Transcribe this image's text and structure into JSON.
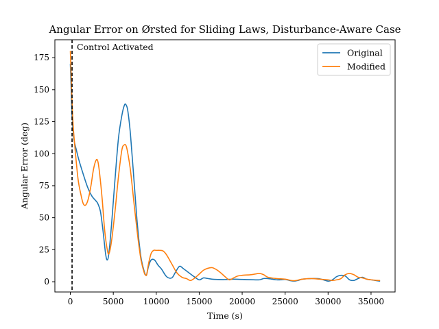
{
  "chart_data": {
    "type": "line",
    "title": "Angular Error on Ørsted for Sliding Laws, Disturbance-Aware Case",
    "xlabel": "Time (s)",
    "ylabel": "Angular Error (deg)",
    "xlim": [
      -1800,
      37800
    ],
    "ylim": [
      -8,
      189
    ],
    "xticks": [
      0,
      5000,
      10000,
      15000,
      20000,
      25000,
      30000,
      35000
    ],
    "xtick_labels": [
      "0",
      "5000",
      "10000",
      "15000",
      "20000",
      "25000",
      "30000",
      "35000"
    ],
    "yticks": [
      0,
      25,
      50,
      75,
      100,
      125,
      150,
      175
    ],
    "ytick_labels": [
      "0",
      "25",
      "50",
      "75",
      "100",
      "125",
      "150",
      "175"
    ],
    "grid": false,
    "legend_position": "top-right",
    "annotation": {
      "label": "Control Activated",
      "x": 200,
      "style": "dashed vertical line"
    },
    "series": [
      {
        "name": "Original",
        "color": "#1f77b4",
        "x": [
          0,
          100,
          200,
          400,
          700,
          1000,
          1500,
          2000,
          2500,
          3000,
          3200,
          3500,
          3800,
          4100,
          4300,
          4500,
          4800,
          5200,
          5600,
          6000,
          6300,
          6500,
          6700,
          7000,
          7400,
          7800,
          8200,
          8600,
          8800,
          8900,
          9100,
          9400,
          9800,
          10200,
          10600,
          11200,
          11800,
          12200,
          12700,
          13200,
          13800,
          14400,
          15000,
          15500,
          16000,
          16500,
          17000,
          18000,
          19000,
          20000,
          21000,
          22000,
          22500,
          23000,
          23500,
          24000,
          24500,
          25000,
          25500,
          26000,
          26500,
          27000,
          28000,
          29000,
          30000,
          30500,
          31000,
          31500,
          32000,
          32500,
          33000,
          33500,
          34000,
          34500,
          35000,
          35500,
          36000
        ],
        "y": [
          170,
          150,
          130,
          112,
          103,
          95,
          84,
          74,
          67,
          63,
          61,
          55,
          40,
          22,
          17,
          23,
          45,
          80,
          112,
          130,
          138,
          138,
          133,
          115,
          80,
          45,
          20,
          8,
          5,
          6,
          12,
          17,
          17,
          13,
          10,
          4,
          3,
          7,
          12,
          10,
          7,
          4,
          1.5,
          3,
          2.5,
          2,
          1.8,
          1.7,
          2,
          1.8,
          1.6,
          1.5,
          2.5,
          2.5,
          2,
          1.5,
          1.5,
          1.8,
          1,
          0.5,
          1,
          2,
          2.5,
          2.3,
          0.5,
          1.5,
          4,
          5,
          4.5,
          1.5,
          1,
          2.5,
          3.5,
          2,
          1.5,
          1,
          0.5
        ]
      },
      {
        "name": "Modified",
        "color": "#ff7f0e",
        "x": [
          0,
          100,
          200,
          350,
          600,
          900,
          1200,
          1500,
          1800,
          2100,
          2400,
          2700,
          3000,
          3200,
          3400,
          3700,
          4000,
          4300,
          4500,
          4800,
          5200,
          5600,
          6000,
          6300,
          6500,
          6700,
          7000,
          7400,
          7800,
          8200,
          8600,
          8800,
          8900,
          9100,
          9400,
          9700,
          10000,
          10400,
          10800,
          11200,
          11800,
          12400,
          13000,
          13500,
          14000,
          14500,
          15000,
          15500,
          16000,
          16500,
          17000,
          17500,
          18000,
          18500,
          19000,
          19500,
          20000,
          21000,
          21500,
          22000,
          22500,
          23000,
          24000,
          25000,
          26000,
          27000,
          28000,
          29000,
          30000,
          30500,
          31000,
          31500,
          32000,
          32500,
          33000,
          33500,
          34000,
          34500,
          35000,
          35500,
          36000
        ],
        "y": [
          180,
          160,
          140,
          120,
          100,
          80,
          69,
          61,
          60,
          65,
          75,
          88,
          95,
          94,
          85,
          65,
          40,
          25,
          22,
          32,
          55,
          82,
          103,
          107,
          106,
          100,
          87,
          62,
          38,
          18,
          7,
          5,
          6,
          14,
          22,
          24.5,
          24.5,
          24.5,
          24,
          21,
          14,
          7,
          3.5,
          2.5,
          1,
          3,
          6,
          9,
          10.5,
          11,
          9.5,
          7,
          4,
          1.5,
          3,
          4.5,
          5,
          5.5,
          6,
          6.5,
          5.5,
          3.5,
          2.5,
          2,
          0.8,
          2,
          2.5,
          2,
          1.5,
          1,
          1.5,
          2.5,
          5.5,
          6.5,
          5.5,
          3.5,
          3,
          2,
          1.5,
          1.2,
          1
        ]
      }
    ]
  }
}
